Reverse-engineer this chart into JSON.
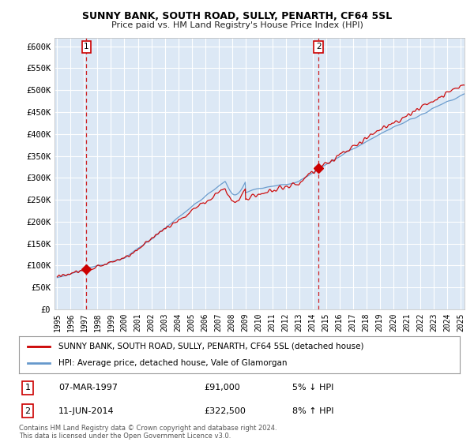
{
  "title": "SUNNY BANK, SOUTH ROAD, SULLY, PENARTH, CF64 5SL",
  "subtitle": "Price paid vs. HM Land Registry's House Price Index (HPI)",
  "background_color": "#ffffff",
  "plot_bg_color": "#dce8f5",
  "yticks": [
    0,
    50000,
    100000,
    150000,
    200000,
    250000,
    300000,
    350000,
    400000,
    450000,
    500000,
    550000,
    600000
  ],
  "ytick_labels": [
    "£0",
    "£50K",
    "£100K",
    "£150K",
    "£200K",
    "£250K",
    "£300K",
    "£350K",
    "£400K",
    "£450K",
    "£500K",
    "£550K",
    "£600K"
  ],
  "ylim": [
    0,
    620000
  ],
  "xlim_start": 1994.8,
  "xlim_end": 2025.3,
  "sale1_x": 1997.18,
  "sale1_y": 91000,
  "sale1_label": "1",
  "sale1_date": "07-MAR-1997",
  "sale1_price": "£91,000",
  "sale1_hpi": "5% ↓ HPI",
  "sale2_x": 2014.44,
  "sale2_y": 322500,
  "sale2_label": "2",
  "sale2_date": "11-JUN-2014",
  "sale2_price": "£322,500",
  "sale2_hpi": "8% ↑ HPI",
  "line_color_property": "#cc0000",
  "line_color_hpi": "#6699cc",
  "legend_label_property": "SUNNY BANK, SOUTH ROAD, SULLY, PENARTH, CF64 5SL (detached house)",
  "legend_label_hpi": "HPI: Average price, detached house, Vale of Glamorgan",
  "footer": "Contains HM Land Registry data © Crown copyright and database right 2024.\nThis data is licensed under the Open Government Licence v3.0.",
  "grid_color": "#ffffff",
  "marker_color": "#cc0000",
  "dashed_line_color": "#cc0000",
  "box_color": "#cc0000"
}
